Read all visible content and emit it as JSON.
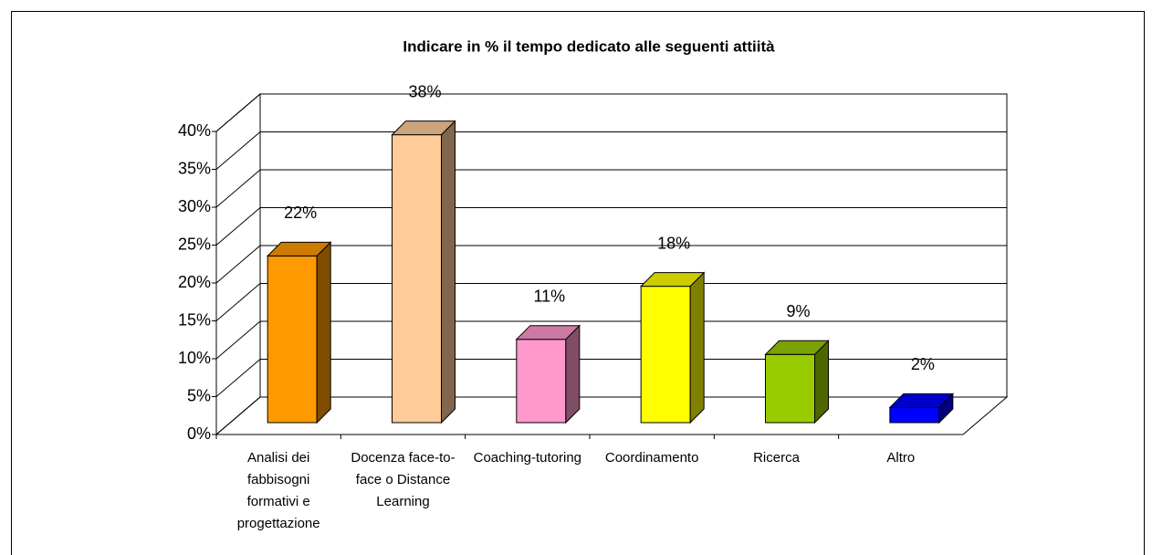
{
  "chart_data": {
    "type": "bar3d",
    "title": "Indicare in % il tempo dedicato alle seguenti attiità",
    "categories": [
      "Analisi dei fabbisogni formativi e progettazione",
      "Docenza face-to-face o Distance Learning",
      "Coaching-tutoring",
      "Coordinamento",
      "Ricerca",
      "Altro"
    ],
    "values": [
      22,
      38,
      11,
      18,
      9,
      2
    ],
    "value_labels": [
      "22%",
      "38%",
      "11%",
      "18%",
      "9%",
      "2%"
    ],
    "colors": [
      "#ff9900",
      "#ffcc99",
      "#ff99cc",
      "#ffff00",
      "#99cc00",
      "#0000ff"
    ],
    "ylim": [
      0,
      40
    ],
    "yticks": [
      {
        "value": 0,
        "label": "0%"
      },
      {
        "value": 5,
        "label": "5%"
      },
      {
        "value": 10,
        "label": "10%"
      },
      {
        "value": 15,
        "label": "15%"
      },
      {
        "value": 20,
        "label": "20%"
      },
      {
        "value": 25,
        "label": "25%"
      },
      {
        "value": 30,
        "label": "30%"
      },
      {
        "value": 35,
        "label": "35%"
      },
      {
        "value": 40,
        "label": "40%"
      }
    ],
    "grid": true
  }
}
